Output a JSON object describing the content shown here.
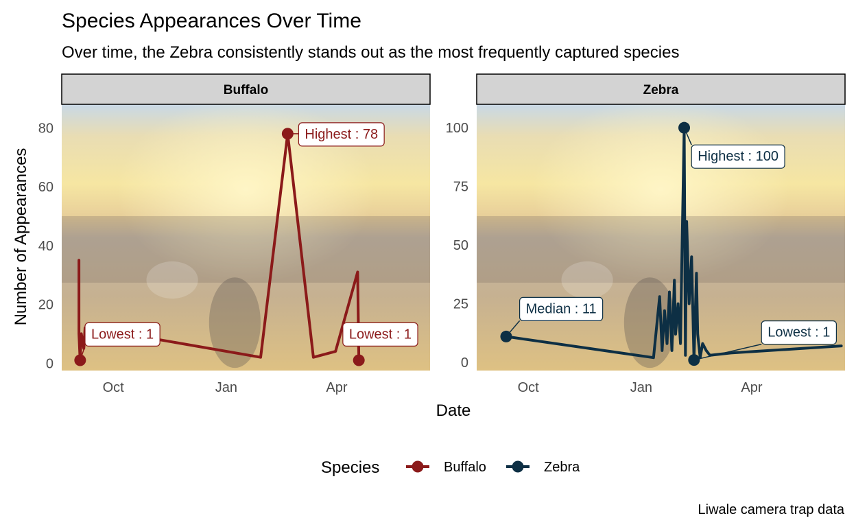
{
  "chart_data": {
    "type": "line",
    "title": "Species Appearances Over Time",
    "subtitle": "Over time, the Zebra consistently stands out as the most frequently captured species",
    "xlabel": "Date",
    "ylabel": "Number of Appearances",
    "caption": "Liwale camera trap data",
    "x_ticks": [
      {
        "label": "Oct",
        "day": 30
      },
      {
        "label": "Jan",
        "day": 122
      },
      {
        "label": "Apr",
        "day": 212
      }
    ],
    "x_range_day": [
      -12,
      288
    ],
    "legend": {
      "title": "Species",
      "position": "bottom"
    },
    "colors": {
      "Buffalo": "#8b1a1a",
      "Zebra": "#0d2f44"
    },
    "panels": [
      {
        "name": "Buffalo",
        "ylim": [
          -2.5,
          88
        ],
        "y_ticks": [
          0,
          20,
          40,
          60,
          80
        ],
        "points": [
          [
            2,
            35
          ],
          [
            2,
            10
          ],
          [
            3,
            1
          ],
          [
            4,
            10
          ],
          [
            6,
            5
          ],
          [
            7,
            12
          ],
          [
            12,
            12
          ],
          [
            150,
            2
          ],
          [
            172,
            78
          ],
          [
            193,
            2
          ],
          [
            211,
            4
          ],
          [
            229,
            31
          ],
          [
            230,
            1
          ]
        ],
        "highlights": [
          [
            172,
            78
          ],
          [
            3,
            1
          ],
          [
            230,
            1
          ]
        ],
        "annotations": [
          {
            "text": "Highest : 78",
            "day": 172,
            "value": 78,
            "lx": 186,
            "ly": 78
          },
          {
            "text": "Lowest : 1",
            "day": 3,
            "value": 1,
            "lx": 12,
            "ly": 10
          },
          {
            "text": "Lowest : 1",
            "day": 230,
            "value": 1,
            "lx": 222,
            "ly": 10
          }
        ]
      },
      {
        "name": "Zebra",
        "ylim": [
          -3.5,
          110
        ],
        "y_ticks": [
          0,
          25,
          50,
          75,
          100
        ],
        "points": [
          [
            12,
            11
          ],
          [
            132,
            2
          ],
          [
            137,
            28
          ],
          [
            139,
            5
          ],
          [
            141,
            22
          ],
          [
            143,
            8
          ],
          [
            145,
            30
          ],
          [
            147,
            5
          ],
          [
            149,
            35
          ],
          [
            150,
            12
          ],
          [
            152,
            25
          ],
          [
            154,
            8
          ],
          [
            155,
            40
          ],
          [
            157,
            100
          ],
          [
            158,
            3
          ],
          [
            159,
            60
          ],
          [
            161,
            25
          ],
          [
            163,
            45
          ],
          [
            165,
            1
          ],
          [
            167,
            38
          ],
          [
            168,
            12
          ],
          [
            170,
            2
          ],
          [
            172,
            8
          ],
          [
            175,
            5
          ],
          [
            178,
            3
          ],
          [
            195,
            4
          ],
          [
            285,
            7
          ]
        ],
        "highlights": [
          [
            157,
            100
          ],
          [
            12,
            11
          ],
          [
            165,
            1
          ]
        ],
        "annotations": [
          {
            "text": "Highest : 100",
            "day": 157,
            "value": 100,
            "lx": 168,
            "ly": 88
          },
          {
            "text": "Median : 11",
            "day": 12,
            "value": 11,
            "lx": 28,
            "ly": 23
          },
          {
            "text": "Lowest : 1",
            "day": 165,
            "value": 1,
            "lx": 225,
            "ly": 13
          }
        ]
      }
    ]
  }
}
